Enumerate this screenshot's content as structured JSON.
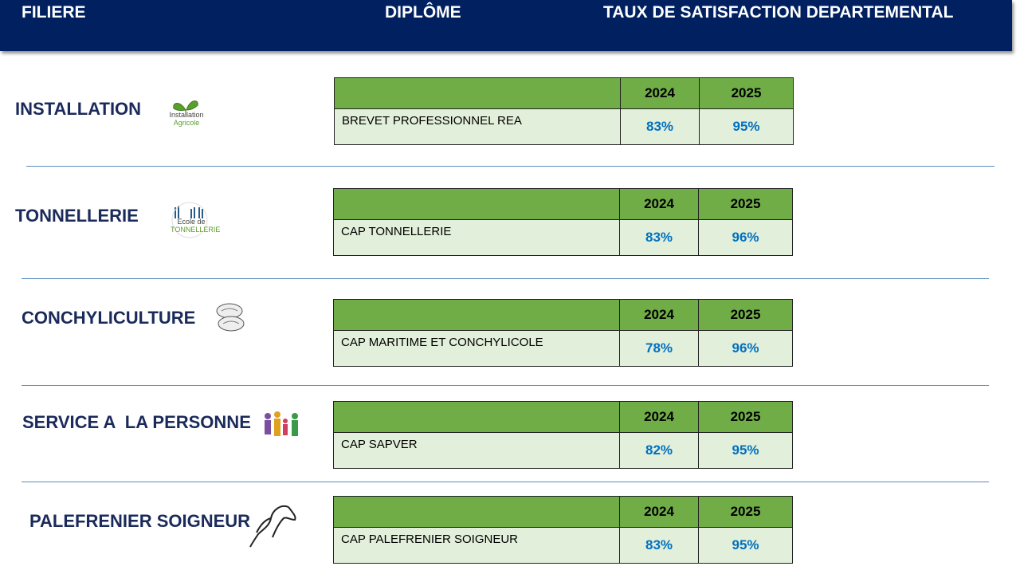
{
  "header": {
    "columns": [
      "FILIERE",
      "DIPLÔME",
      "TAUX DE SATISFACTION DEPARTEMENTAL"
    ]
  },
  "sections": [
    {
      "filiere": "INSTALLATION",
      "logo_text": [
        "Installation",
        "Agricole"
      ],
      "table": {
        "years": [
          "2024",
          "2025"
        ],
        "diplome": "BREVET PROFESSIONNEL REA",
        "rates": [
          "83%",
          "95%"
        ]
      }
    },
    {
      "filiere": "TONNELLERIE",
      "logo_text": [
        "Ecole de",
        "TONNELLERIE"
      ],
      "table": {
        "years": [
          "2024",
          "2025"
        ],
        "diplome": "CAP TONNELLERIE",
        "rates": [
          "83%",
          "96%"
        ]
      }
    },
    {
      "filiere": "CONCHYLICULTURE",
      "table": {
        "years": [
          "2024",
          "2025"
        ],
        "diplome": "CAP MARITIME ET CONCHYLICOLE",
        "rates": [
          "78%",
          "96%"
        ]
      }
    },
    {
      "filiere": "SERVICE A  LA PERSONNE",
      "table": {
        "years": [
          "2024",
          "2025"
        ],
        "diplome": "CAP SAPVER",
        "rates": [
          "82%",
          "95%"
        ]
      }
    },
    {
      "filiere": "PALEFRENIER SOIGNEUR",
      "table": {
        "years": [
          "2024",
          "2025"
        ],
        "diplome": "CAP PALEFRENIER SOIGNEUR",
        "rates": [
          "83%",
          "95%"
        ]
      }
    }
  ]
}
